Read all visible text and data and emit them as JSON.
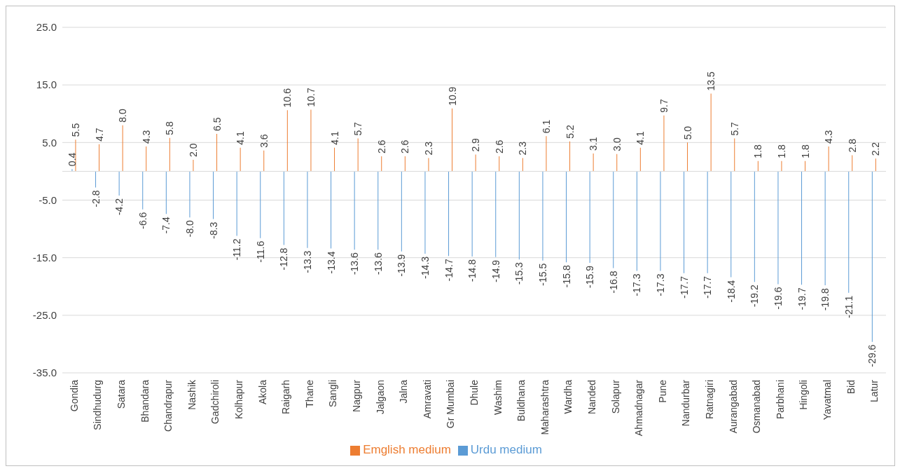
{
  "chart_data": {
    "type": "bar",
    "categories": [
      "Gondia",
      "Sindhudurg",
      "Satara",
      "Bhandara",
      "Chandrapur",
      "Nashik",
      "Gadchiroli",
      "Kolhapur",
      "Akola",
      "Raigarh",
      "Thane",
      "Sangli",
      "Nagpur",
      "Jalgaon",
      "Jalna",
      "Amravati",
      "Gr Mumbai",
      "Dhule",
      "Washim",
      "Buldhana",
      "Maharashtra",
      "Wardha",
      "Nanded",
      "Solapur",
      "Ahmadnagar",
      "Pune",
      "Nandurbar",
      "Ratnagiri",
      "Aurangabad",
      "Osmanabad",
      "Parbhani",
      "Hingoli",
      "Yavatmal",
      "Bid",
      "Latur"
    ],
    "series": [
      {
        "name": "Urdu medium",
        "color": "#5b9bd5",
        "values": [
          0.4,
          -2.8,
          -4.2,
          -6.6,
          -7.4,
          -8.0,
          -8.3,
          -11.2,
          -11.6,
          -12.8,
          -13.3,
          -13.4,
          -13.6,
          -13.6,
          -13.9,
          -14.3,
          -14.7,
          -14.8,
          -14.9,
          -15.3,
          -15.5,
          -15.8,
          -15.9,
          -16.8,
          -17.3,
          -17.3,
          -17.7,
          -17.7,
          -18.4,
          -19.2,
          -19.6,
          -19.7,
          -19.8,
          -21.1,
          -29.6
        ],
        "value_labels": [
          "0.4",
          "-2.8",
          "-4.2",
          "-6.6",
          "-7.4",
          "-8.0",
          "-8.3",
          "-11.2",
          "-11.6",
          "-12.8",
          "-13.3",
          "-13.4",
          "-13.6",
          "-13.6",
          "-13.9",
          "-14.3",
          "-14.7",
          "-14.8",
          "-14.9",
          "-15.3",
          "-15.5",
          "-15.8",
          "-15.9",
          "-16.8",
          "-17.3",
          "-17.3",
          "-17.7",
          "-17.7",
          "-18.4",
          "-19.2",
          "-19.6",
          "-19.7",
          "-19.8",
          "-21.1",
          "-29.6"
        ]
      },
      {
        "name": "Emglish medium",
        "color": "#ed7d31",
        "values": [
          5.5,
          4.7,
          8.0,
          4.3,
          5.8,
          2.0,
          6.5,
          4.1,
          3.6,
          10.6,
          10.7,
          4.1,
          5.7,
          2.6,
          2.6,
          2.3,
          10.9,
          2.9,
          2.6,
          2.3,
          6.1,
          5.2,
          3.1,
          3.0,
          4.1,
          9.7,
          5.0,
          13.5,
          5.7,
          1.8,
          1.8,
          1.8,
          4.3,
          2.8,
          2.2
        ],
        "value_labels": [
          "5.5",
          "4.7",
          "8.0",
          "4.3",
          "5.8",
          "2.0",
          "6.5",
          "4.1",
          "3.6",
          "10.6",
          "10.7",
          "4.1",
          "5.7",
          "2.6",
          "2.6",
          "2.3",
          "10.9",
          "2.9",
          "2.6",
          "2.3",
          "6.1",
          "5.2",
          "3.1",
          "3.0",
          "4.1",
          "9.7",
          "5.0",
          "13.5",
          "5.7",
          "1.8",
          "1.8",
          "1.8",
          "4.3",
          "2.8",
          "2.2"
        ]
      }
    ],
    "ylim": [
      -35,
      25
    ],
    "yticks": [
      {
        "value": -35,
        "label": "-35.0"
      },
      {
        "value": -25,
        "label": "-25.0"
      },
      {
        "value": -15,
        "label": "-15.0"
      },
      {
        "value": -5,
        "label": "-5.0"
      },
      {
        "value": 5,
        "label": "5.0"
      },
      {
        "value": 15,
        "label": "15.0"
      },
      {
        "value": 25,
        "label": "25.0"
      }
    ],
    "grid": "y",
    "legend": "bottom"
  }
}
